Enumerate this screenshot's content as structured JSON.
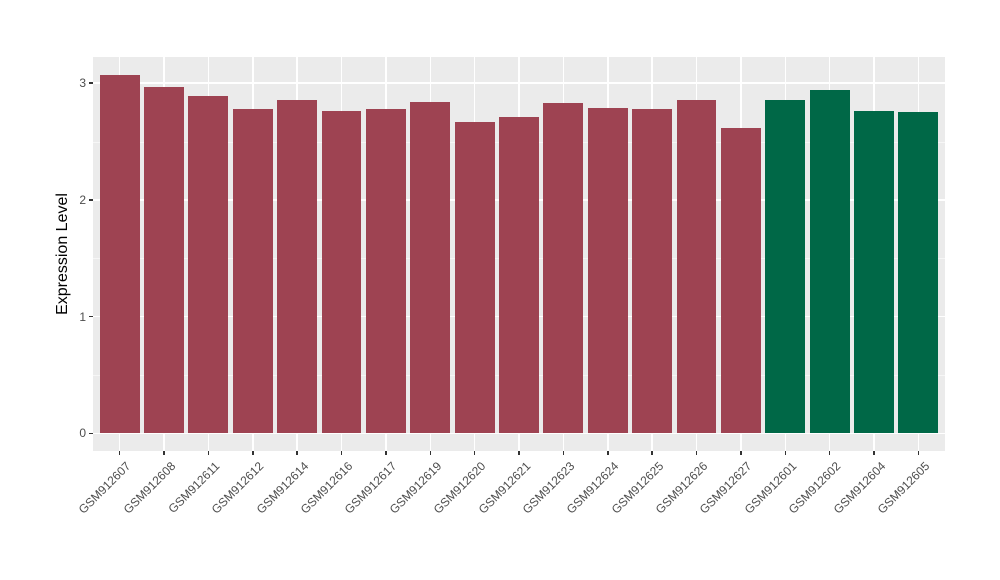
{
  "chart_data": {
    "type": "bar",
    "title": "",
    "xlabel": "",
    "ylabel": "Expression Level",
    "categories": [
      "GSM912607",
      "GSM912608",
      "GSM912611",
      "GSM912612",
      "GSM912614",
      "GSM912616",
      "GSM912617",
      "GSM912619",
      "GSM912620",
      "GSM912621",
      "GSM912623",
      "GSM912624",
      "GSM912625",
      "GSM912626",
      "GSM912627",
      "GSM912601",
      "GSM912602",
      "GSM912604",
      "GSM912605"
    ],
    "values": [
      3.07,
      2.97,
      2.89,
      2.78,
      2.86,
      2.76,
      2.78,
      2.84,
      2.67,
      2.71,
      2.83,
      2.79,
      2.78,
      2.86,
      2.62,
      2.86,
      2.94,
      2.76,
      2.75
    ],
    "colors": [
      "#9E4352",
      "#9E4352",
      "#9E4352",
      "#9E4352",
      "#9E4352",
      "#9E4352",
      "#9E4352",
      "#9E4352",
      "#9E4352",
      "#9E4352",
      "#9E4352",
      "#9E4352",
      "#9E4352",
      "#9E4352",
      "#9E4352",
      "#006847",
      "#006847",
      "#006847",
      "#006847"
    ],
    "group_colors": {
      "maroon": "#9E4352",
      "green": "#006847"
    },
    "yticks": [
      0,
      1,
      2,
      3
    ],
    "ylim": [
      -0.15,
      3.22
    ],
    "grid": true,
    "legend": "none",
    "panel_bg": "#EBEBEB",
    "gridline_color": "#FFFFFF",
    "tick_color": "#333333",
    "axis_text_color": "#4D4D4D",
    "axis_title_color": "#000000",
    "bar_width_ratio": 0.9
  }
}
